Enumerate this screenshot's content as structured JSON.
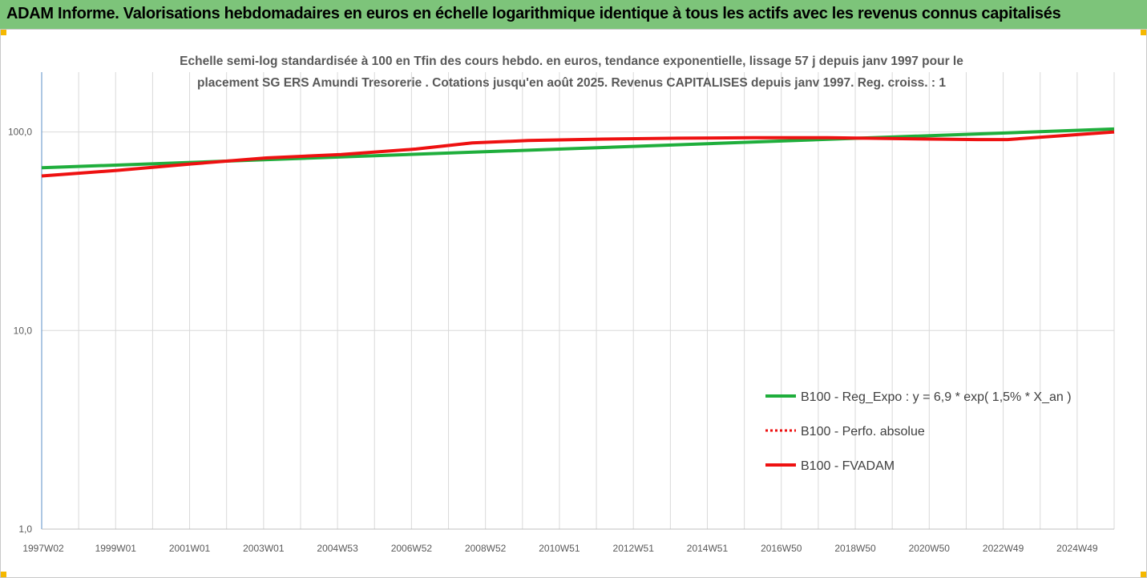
{
  "header": {
    "title": "ADAM Informe. Valorisations hebdomadaires en euros en échelle logarithmique identique à tous les actifs avec les revenus connus capitalisés"
  },
  "colors": {
    "header_bg": "#7dc47a",
    "corner": "#f5b800",
    "green": "#1fae3c",
    "red": "#ee1111",
    "grid": "#d9d9d9"
  },
  "chart_data": {
    "type": "line",
    "title_lines": [
      "Echelle semi-log standardisée à 100 en Tfin des cours hebdo. en euros, tendance exponentielle, lissage 57 j depuis janv 1997 pour le",
      "placement SG ERS Amundi Tresorerie . Cotations jusqu'en août 2025. Revenus CAPITALISES depuis janv 1997. Reg. croiss. : 1"
    ],
    "y_scale": "log",
    "ylim": [
      1,
      200
    ],
    "y_ticks": [
      {
        "value": 1,
        "label": "1,0"
      },
      {
        "value": 10,
        "label": "10,0"
      },
      {
        "value": 100,
        "label": "100,0"
      }
    ],
    "x_categories": [
      "1997W02",
      "1999W01",
      "2001W01",
      "2003W01",
      "2004W53",
      "2006W52",
      "2008W52",
      "2010W51",
      "2012W51",
      "2014W51",
      "2016W50",
      "2018W50",
      "2020W50",
      "2022W49",
      "2024W49"
    ],
    "xlim": [
      1997.0,
      2025.65
    ],
    "grid": "vertical",
    "legend_position": "bottom-right",
    "series": [
      {
        "name": "B100 - Reg_Expo : y = 6,9 * exp( 1,5% *  X_an )",
        "style": "solid",
        "color": "#1fae3c",
        "x": [
          1997.0,
          2025.65
        ],
        "values": [
          66.0,
          103.5
        ]
      },
      {
        "name": "B100 - Perfo. absolue",
        "style": "dotted",
        "color": "#ee1111",
        "x": [
          1997.0,
          1999.0,
          2001.0,
          2003.0,
          2005.0,
          2007.0,
          2008.5,
          2010.0,
          2012.0,
          2014.0,
          2016.0,
          2018.0,
          2020.0,
          2022.0,
          2022.8,
          2024.0,
          2025.65
        ],
        "values": [
          60.0,
          64.0,
          69.0,
          74.0,
          77.0,
          82.0,
          88.0,
          90.5,
          92.0,
          93.0,
          93.5,
          93.5,
          92.5,
          91.5,
          91.5,
          95.0,
          100.0
        ]
      },
      {
        "name": "B100 - FVADAM",
        "style": "solid",
        "color": "#ee1111",
        "x": [
          1997.0,
          1999.0,
          2001.0,
          2003.0,
          2005.0,
          2007.0,
          2008.5,
          2010.0,
          2012.0,
          2014.0,
          2016.0,
          2018.0,
          2020.0,
          2022.0,
          2022.8,
          2024.0,
          2025.65
        ],
        "values": [
          60.0,
          64.0,
          69.0,
          74.0,
          77.0,
          82.0,
          88.0,
          90.5,
          92.0,
          93.0,
          93.5,
          93.5,
          92.5,
          91.5,
          91.5,
          95.0,
          100.0
        ]
      }
    ]
  }
}
